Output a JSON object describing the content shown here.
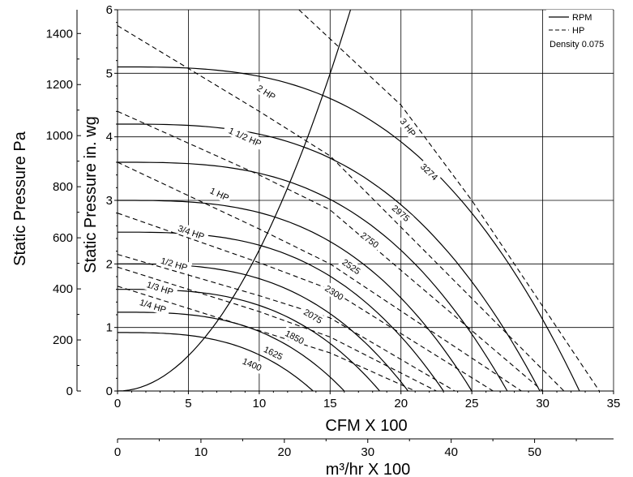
{
  "chart_data": {
    "type": "line",
    "xlabel": "CFM X 100",
    "x2label": "m³/hr X 100",
    "ylabel": "Static Pressure in. wg",
    "y2label": "Static Pressure Pa",
    "xlim": [
      0,
      35
    ],
    "ylim": [
      0,
      6
    ],
    "x_ticks": [
      "0",
      "5",
      "10",
      "15",
      "20",
      "25",
      "30",
      "35"
    ],
    "y_ticks": [
      "0",
      "1",
      "2",
      "3",
      "4",
      "5",
      "6"
    ],
    "x2_ticks": [
      "0",
      "10",
      "20",
      "30",
      "40",
      "50"
    ],
    "y2_ticks": [
      "0",
      "200",
      "400",
      "600",
      "800",
      "1000",
      "1200",
      "1400"
    ],
    "grid": true,
    "legend": {
      "position": "top-right",
      "rpm_label": "RPM",
      "hp_label": "HP",
      "note": "Density 0.075"
    },
    "rpm_curves": [
      {
        "label": "1400",
        "shutoff": 0.92,
        "max_cfm": 13.8,
        "label_x": 9.5,
        "label_y": 0.42
      },
      {
        "label": "1625",
        "shutoff": 1.24,
        "max_cfm": 16.0,
        "label_x": 11.0,
        "label_y": 0.6
      },
      {
        "label": "1850",
        "shutoff": 1.6,
        "max_cfm": 18.5,
        "label_x": 12.5,
        "label_y": 0.85
      },
      {
        "label": "2075",
        "shutoff": 2.0,
        "max_cfm": 20.5,
        "label_x": 13.8,
        "label_y": 1.18
      },
      {
        "label": "2300",
        "shutoff": 2.5,
        "max_cfm": 23.0,
        "label_x": 15.3,
        "label_y": 1.55
      },
      {
        "label": "2525",
        "shutoff": 3.0,
        "max_cfm": 25.0,
        "label_x": 16.5,
        "label_y": 1.96
      },
      {
        "label": "2750",
        "shutoff": 3.6,
        "max_cfm": 27.5,
        "label_x": 17.8,
        "label_y": 2.38
      },
      {
        "label": "2975",
        "shutoff": 4.2,
        "max_cfm": 29.8,
        "label_x": 20.0,
        "label_y": 2.8
      },
      {
        "label": "3274",
        "shutoff": 5.1,
        "max_cfm": 32.6,
        "label_x": 22.0,
        "label_y": 3.45
      }
    ],
    "hp_curves": [
      {
        "label": "1/4 HP",
        "points": [
          [
            0,
            1.65
          ],
          [
            10,
            0.95
          ],
          [
            15,
            0.6
          ],
          [
            21,
            0.0
          ]
        ],
        "label_x": 2.5,
        "label_y": 1.34
      },
      {
        "label": "1/3 HP",
        "points": [
          [
            0,
            1.95
          ],
          [
            10,
            1.25
          ],
          [
            15,
            0.85
          ],
          [
            22.5,
            0.0
          ]
        ],
        "label_x": 3.0,
        "label_y": 1.62
      },
      {
        "label": "1/2 HP",
        "points": [
          [
            0,
            2.15
          ],
          [
            10,
            1.5
          ],
          [
            15,
            1.15
          ],
          [
            23.8,
            0.0
          ]
        ],
        "label_x": 4.0,
        "label_y": 2.0
      },
      {
        "label": "3/4 HP",
        "points": [
          [
            0,
            2.8
          ],
          [
            10,
            2.02
          ],
          [
            15,
            1.6
          ],
          [
            26.5,
            0.0
          ]
        ],
        "label_x": 5.2,
        "label_y": 2.5
      },
      {
        "label": "1 HP",
        "points": [
          [
            0,
            3.6
          ],
          [
            10,
            2.55
          ],
          [
            15,
            2.0
          ],
          [
            28.5,
            0.0
          ]
        ],
        "label_x": 7.2,
        "label_y": 3.1
      },
      {
        "label": "1 1/2 HP",
        "points": [
          [
            0,
            4.4
          ],
          [
            10,
            3.4
          ],
          [
            15,
            2.85
          ],
          [
            30.0,
            0.0
          ]
        ],
        "label_x": 9.0,
        "label_y": 4.0
      },
      {
        "label": "2 HP",
        "points": [
          [
            0,
            5.75
          ],
          [
            10,
            4.4
          ],
          [
            15,
            3.7
          ],
          [
            31.5,
            0.0
          ]
        ],
        "label_x": 10.5,
        "label_y": 4.7
      },
      {
        "label": "3 HP",
        "points": [
          [
            12.8,
            6.0
          ],
          [
            20,
            4.5
          ],
          [
            25,
            3.0
          ],
          [
            34.0,
            0.0
          ]
        ],
        "label_x": 20.5,
        "label_y": 4.15
      }
    ],
    "system_curve": {
      "k": 0.0222,
      "max_y": 6.0
    }
  }
}
